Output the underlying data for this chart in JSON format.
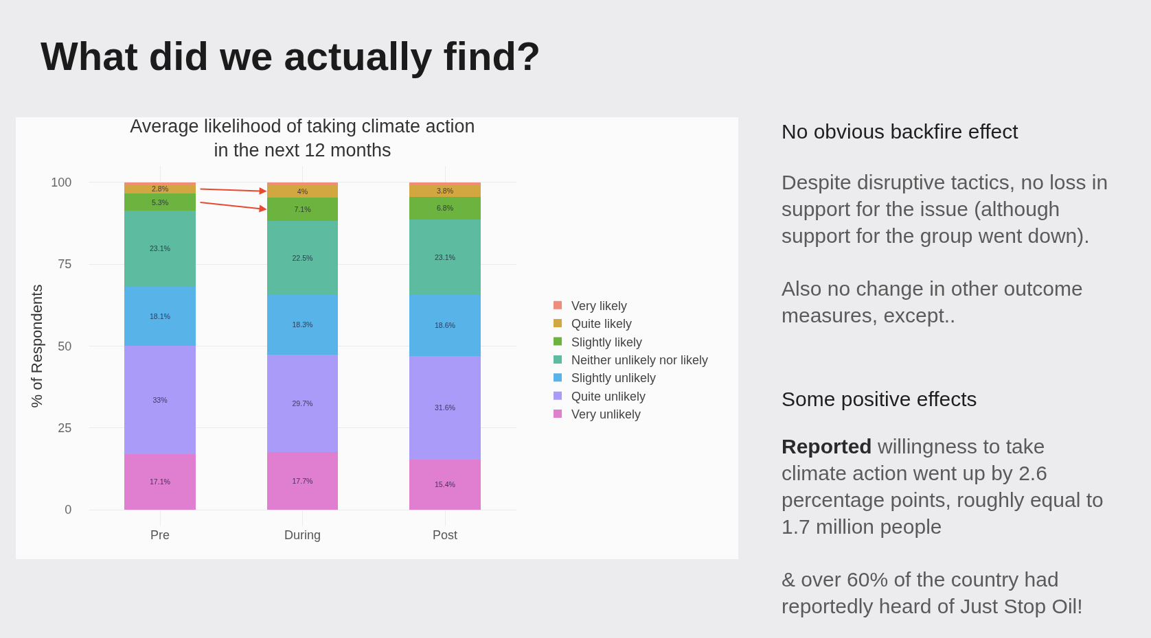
{
  "chart_data": {
    "type": "bar",
    "title": "Average likelihood of taking climate action\nin the next 12 months",
    "ylabel": "% of Respondents",
    "categories": [
      "Pre",
      "During",
      "Post"
    ],
    "stacked": true,
    "series": [
      {
        "name": "Very unlikely",
        "color": "#e07fd0",
        "values": [
          17.1,
          17.7,
          15.4
        ],
        "value_labels": [
          "17.1%",
          "17.7%",
          "15.4%"
        ]
      },
      {
        "name": "Quite unlikely",
        "color": "#a99bf7",
        "values": [
          33,
          29.7,
          31.6
        ],
        "value_labels": [
          "33%",
          "29.7%",
          "31.6%"
        ]
      },
      {
        "name": "Slightly unlikely",
        "color": "#58b3e8",
        "values": [
          18.1,
          18.3,
          18.6
        ],
        "value_labels": [
          "18.1%",
          "18.3%",
          "18.6%"
        ]
      },
      {
        "name": "Neither unlikely nor likely",
        "color": "#5dbb9f",
        "values": [
          23.1,
          22.5,
          23.1
        ],
        "value_labels": [
          "23.1%",
          "22.5%",
          "23.1%"
        ]
      },
      {
        "name": "Slightly likely",
        "color": "#6db33f",
        "values": [
          5.3,
          7.1,
          6.8
        ],
        "value_labels": [
          "5.3%",
          "7.1%",
          "6.8%"
        ]
      },
      {
        "name": "Quite likely",
        "color": "#d2a640",
        "values": [
          2.8,
          4,
          3.8
        ],
        "value_labels": [
          "2.8%",
          "4%",
          "3.8%"
        ]
      },
      {
        "name": "Very likely",
        "color": "#f08c7c",
        "values": [
          0.6,
          0.7,
          0.7
        ]
      }
    ],
    "ylim": [
      -5,
      105
    ],
    "yticks": [
      0,
      25,
      50,
      75,
      100
    ],
    "grid": true,
    "legend": "right",
    "annotations": [
      "What did we actually find?",
      "No obvious backfire effect",
      "Despite disruptive tactics, no loss in support for the issue (although support for the group went down).",
      "Also no change in other outcome measures, except..",
      "Some positive effects",
      "Reported willingness to take climate action went up by 2.6 percentage points, roughly equal to 1.7 million people",
      "& over 60% of the country had reportedly heard of Just Stop Oil!"
    ]
  }
}
